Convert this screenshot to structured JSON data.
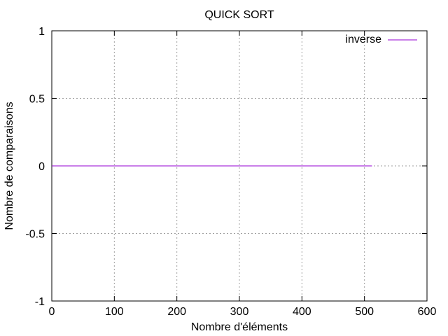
{
  "chart_data": {
    "type": "line",
    "title": "QUICK SORT",
    "xlabel": "Nombre d'éléments",
    "ylabel": "Nombre de comparaisons",
    "xlim": [
      0,
      600
    ],
    "ylim": [
      -1,
      1
    ],
    "xticks": [
      "0",
      "100",
      "200",
      "300",
      "400",
      "500",
      "600"
    ],
    "yticks": [
      "1",
      "0.5",
      "0",
      "-0.5",
      "-1"
    ],
    "grid": true,
    "legend_position": "top-right",
    "series": [
      {
        "name": "inverse",
        "color": "#9400d3",
        "x": [
          0,
          512
        ],
        "y": [
          0,
          0
        ]
      }
    ]
  }
}
